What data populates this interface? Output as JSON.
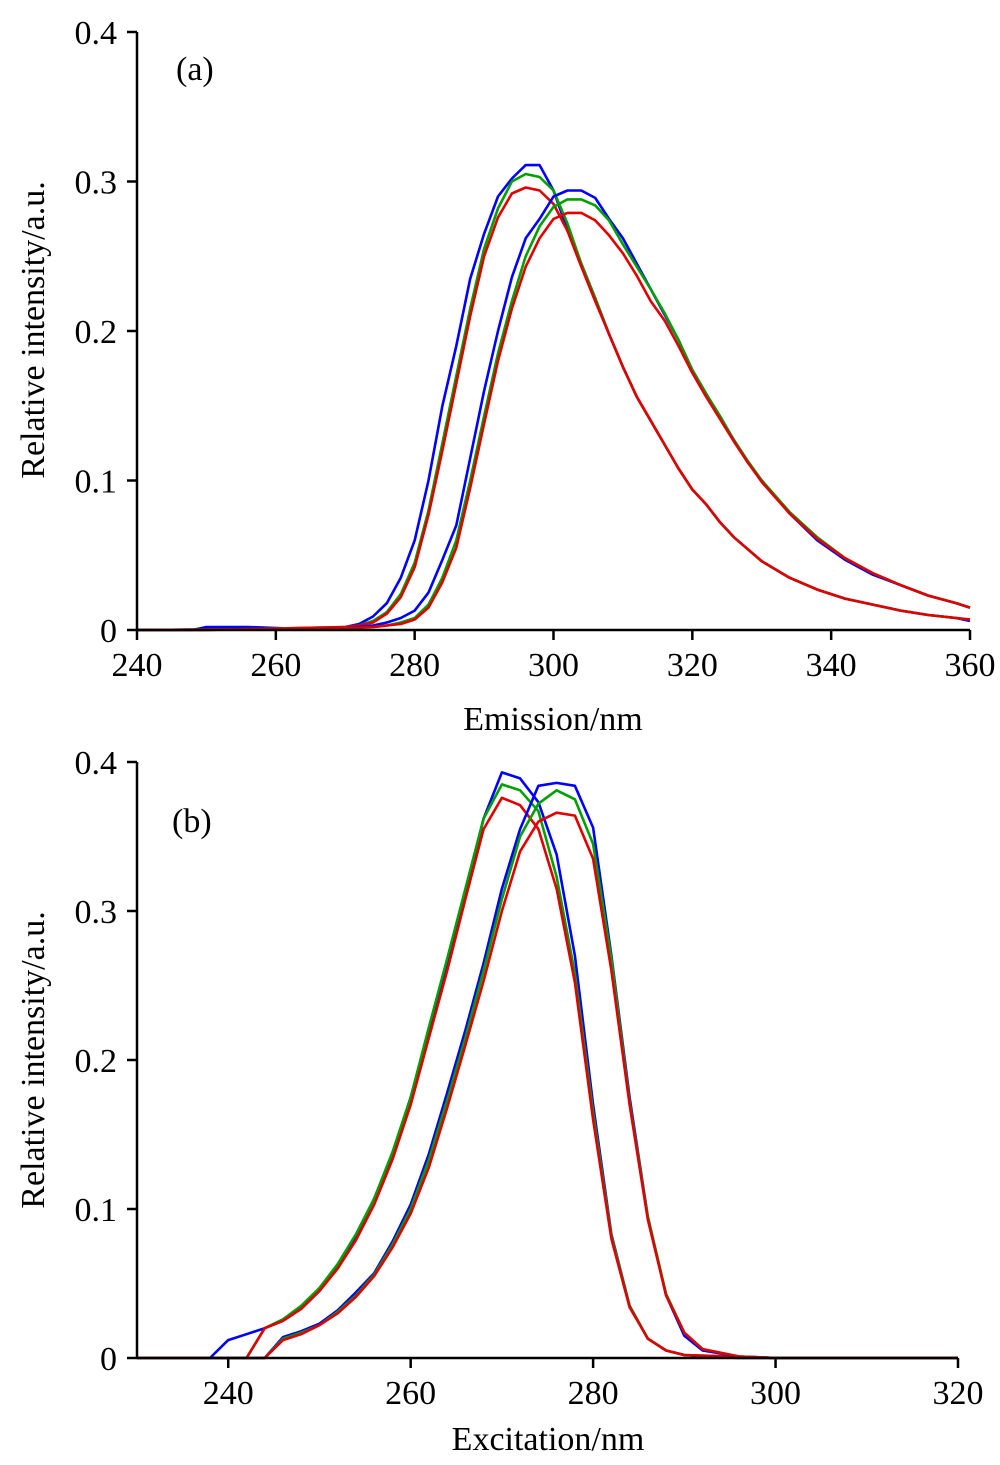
{
  "chart_data": [
    {
      "type": "line",
      "panel_label": "(a)",
      "xlabel": "Emission/nm",
      "ylabel": "Relative intensity/a.u.",
      "xlim": [
        240,
        360
      ],
      "ylim": [
        0,
        0.4
      ],
      "xticks": [
        "240",
        "260",
        "280",
        "300",
        "320",
        "340",
        "360"
      ],
      "yticks": [
        "0",
        "0.1",
        "0.2",
        "0.3",
        "0.4"
      ],
      "grid": false,
      "series": [
        {
          "color": "#0000ff",
          "x": [
            240,
            248,
            250,
            256,
            262,
            266,
            270,
            272,
            274,
            276,
            278,
            280,
            282,
            284,
            286,
            288,
            290,
            292,
            294,
            296,
            298,
            300,
            302,
            304,
            306,
            308,
            310,
            312,
            314,
            316,
            318,
            320,
            322,
            324,
            326,
            328,
            330,
            334,
            338,
            342,
            346,
            350,
            354,
            358,
            360
          ],
          "y": [
            0,
            0,
            0.002,
            0.002,
            0.001,
            0.001,
            0.002,
            0.004,
            0.009,
            0.018,
            0.035,
            0.06,
            0.1,
            0.15,
            0.19,
            0.235,
            0.265,
            0.29,
            0.302,
            0.311,
            0.311,
            0.294,
            0.268,
            0.245,
            0.222,
            0.198,
            0.176,
            0.156,
            0.14,
            0.124,
            0.108,
            0.094,
            0.084,
            0.072,
            0.062,
            0.054,
            0.046,
            0.035,
            0.027,
            0.021,
            0.017,
            0.013,
            0.01,
            0.008,
            0.006
          ]
        },
        {
          "color": "#00a000",
          "x": [
            240,
            250,
            260,
            270,
            272,
            274,
            276,
            278,
            280,
            282,
            284,
            286,
            288,
            290,
            292,
            294,
            296,
            298,
            300,
            302,
            304,
            306,
            308,
            310,
            312,
            314,
            316,
            318,
            320,
            322,
            324,
            326,
            328,
            330,
            334,
            338,
            342,
            346,
            350,
            354,
            358,
            360
          ],
          "y": [
            0,
            0,
            0.001,
            0.002,
            0.003,
            0.006,
            0.012,
            0.024,
            0.045,
            0.08,
            0.125,
            0.17,
            0.215,
            0.255,
            0.282,
            0.3,
            0.305,
            0.303,
            0.294,
            0.272,
            0.245,
            0.222,
            0.198,
            0.176,
            0.156,
            0.14,
            0.124,
            0.108,
            0.094,
            0.084,
            0.072,
            0.062,
            0.054,
            0.046,
            0.035,
            0.027,
            0.021,
            0.017,
            0.013,
            0.01,
            0.008,
            0.007
          ]
        },
        {
          "color": "#e00000",
          "x": [
            240,
            250,
            260,
            270,
            272,
            274,
            276,
            278,
            280,
            282,
            284,
            286,
            288,
            290,
            292,
            294,
            296,
            298,
            300,
            302,
            304,
            306,
            308,
            310,
            312,
            314,
            316,
            318,
            320,
            322,
            324,
            326,
            328,
            330,
            334,
            338,
            342,
            346,
            350,
            354,
            358,
            360
          ],
          "y": [
            0,
            0,
            0.001,
            0.002,
            0.003,
            0.005,
            0.011,
            0.022,
            0.042,
            0.077,
            0.12,
            0.165,
            0.21,
            0.25,
            0.276,
            0.292,
            0.296,
            0.294,
            0.285,
            0.267,
            0.243,
            0.22,
            0.198,
            0.176,
            0.156,
            0.14,
            0.124,
            0.108,
            0.094,
            0.084,
            0.072,
            0.062,
            0.054,
            0.046,
            0.035,
            0.027,
            0.021,
            0.017,
            0.013,
            0.01,
            0.008,
            0.007
          ]
        },
        {
          "color": "#0000ff",
          "x": [
            240,
            270,
            274,
            276,
            278,
            280,
            282,
            284,
            286,
            288,
            290,
            292,
            294,
            296,
            298,
            300,
            302,
            304,
            306,
            308,
            310,
            312,
            314,
            316,
            318,
            320,
            322,
            324,
            326,
            328,
            330,
            334,
            338,
            342,
            346,
            350,
            354,
            358,
            360
          ],
          "y": [
            0,
            0.001,
            0.003,
            0.005,
            0.008,
            0.013,
            0.025,
            0.047,
            0.07,
            0.115,
            0.16,
            0.2,
            0.236,
            0.262,
            0.275,
            0.29,
            0.294,
            0.294,
            0.289,
            0.275,
            0.262,
            0.245,
            0.228,
            0.211,
            0.194,
            0.174,
            0.158,
            0.142,
            0.127,
            0.112,
            0.1,
            0.078,
            0.06,
            0.047,
            0.037,
            0.03,
            0.023,
            0.018,
            0.015
          ]
        },
        {
          "color": "#00a000",
          "x": [
            240,
            270,
            274,
            276,
            278,
            280,
            282,
            284,
            286,
            288,
            290,
            292,
            294,
            296,
            298,
            300,
            302,
            304,
            306,
            308,
            310,
            312,
            314,
            316,
            318,
            320,
            322,
            324,
            326,
            328,
            330,
            334,
            338,
            342,
            346,
            350,
            354,
            358,
            360
          ],
          "y": [
            0,
            0.001,
            0.002,
            0.003,
            0.005,
            0.008,
            0.017,
            0.035,
            0.06,
            0.1,
            0.143,
            0.185,
            0.22,
            0.25,
            0.27,
            0.283,
            0.288,
            0.288,
            0.284,
            0.274,
            0.258,
            0.243,
            0.228,
            0.212,
            0.194,
            0.174,
            0.158,
            0.143,
            0.127,
            0.113,
            0.1,
            0.079,
            0.062,
            0.048,
            0.038,
            0.03,
            0.023,
            0.018,
            0.015
          ]
        },
        {
          "color": "#e00000",
          "x": [
            240,
            270,
            274,
            276,
            278,
            280,
            282,
            284,
            286,
            288,
            290,
            292,
            294,
            296,
            298,
            300,
            302,
            304,
            306,
            308,
            310,
            312,
            314,
            316,
            318,
            320,
            322,
            324,
            326,
            328,
            330,
            334,
            338,
            342,
            346,
            350,
            354,
            358,
            360
          ],
          "y": [
            0,
            0.001,
            0.002,
            0.003,
            0.004,
            0.007,
            0.015,
            0.032,
            0.055,
            0.095,
            0.138,
            0.18,
            0.215,
            0.243,
            0.262,
            0.275,
            0.279,
            0.279,
            0.274,
            0.264,
            0.252,
            0.237,
            0.22,
            0.207,
            0.19,
            0.172,
            0.156,
            0.141,
            0.126,
            0.112,
            0.099,
            0.078,
            0.061,
            0.048,
            0.038,
            0.03,
            0.023,
            0.018,
            0.015
          ]
        }
      ]
    },
    {
      "type": "line",
      "panel_label": "(b)",
      "xlabel": "Excitation/nm",
      "ylabel": "Relative intensity/a.u.",
      "xlim": [
        230,
        320
      ],
      "ylim": [
        0,
        0.4
      ],
      "xticks": [
        "240",
        "260",
        "280",
        "300",
        "320"
      ],
      "yticks": [
        "0",
        "0.1",
        "0.2",
        "0.3",
        "0.4"
      ],
      "grid": false,
      "series": [
        {
          "color": "#0000ff",
          "x": [
            230,
            238,
            240,
            242,
            244,
            246,
            248,
            250,
            252,
            254,
            256,
            258,
            260,
            262,
            264,
            266,
            268,
            270,
            272,
            274,
            276,
            278,
            280,
            282,
            284,
            286,
            288,
            290,
            292,
            296,
            300,
            320
          ],
          "y": [
            0,
            0,
            0.012,
            0.016,
            0.02,
            0.025,
            0.033,
            0.045,
            0.062,
            0.082,
            0.107,
            0.137,
            0.175,
            0.22,
            0.266,
            0.312,
            0.362,
            0.393,
            0.389,
            0.373,
            0.338,
            0.27,
            0.17,
            0.083,
            0.035,
            0.013,
            0.005,
            0.002,
            0.001,
            0,
            0,
            0
          ]
        },
        {
          "color": "#00a000",
          "x": [
            230,
            242,
            244,
            246,
            248,
            250,
            252,
            254,
            256,
            258,
            260,
            262,
            264,
            266,
            268,
            270,
            272,
            274,
            276,
            278,
            280,
            282,
            284,
            286,
            288,
            290,
            300,
            320
          ],
          "y": [
            0,
            0,
            0.02,
            0.026,
            0.035,
            0.047,
            0.063,
            0.083,
            0.107,
            0.138,
            0.175,
            0.222,
            0.268,
            0.315,
            0.362,
            0.385,
            0.381,
            0.367,
            0.323,
            0.258,
            0.165,
            0.082,
            0.035,
            0.013,
            0.005,
            0.002,
            0,
            0
          ]
        },
        {
          "color": "#e00000",
          "x": [
            230,
            242,
            244,
            246,
            248,
            250,
            252,
            254,
            256,
            258,
            260,
            262,
            264,
            266,
            268,
            270,
            272,
            274,
            276,
            278,
            280,
            282,
            284,
            286,
            288,
            290,
            300,
            320
          ],
          "y": [
            0,
            0,
            0.02,
            0.025,
            0.033,
            0.045,
            0.06,
            0.079,
            0.103,
            0.133,
            0.17,
            0.215,
            0.26,
            0.308,
            0.355,
            0.376,
            0.371,
            0.355,
            0.315,
            0.252,
            0.16,
            0.08,
            0.034,
            0.013,
            0.005,
            0.002,
            0,
            0
          ]
        },
        {
          "color": "#0000ff",
          "x": [
            230,
            244,
            246,
            248,
            250,
            252,
            254,
            256,
            258,
            260,
            262,
            264,
            266,
            268,
            270,
            272,
            274,
            276,
            278,
            280,
            282,
            284,
            286,
            288,
            290,
            292,
            296,
            300,
            320
          ],
          "y": [
            0,
            0,
            0.014,
            0.018,
            0.023,
            0.032,
            0.044,
            0.057,
            0.078,
            0.103,
            0.137,
            0.178,
            0.22,
            0.265,
            0.315,
            0.355,
            0.384,
            0.386,
            0.384,
            0.356,
            0.27,
            0.175,
            0.095,
            0.042,
            0.015,
            0.005,
            0.001,
            0,
            0
          ]
        },
        {
          "color": "#00a000",
          "x": [
            230,
            244,
            246,
            248,
            250,
            252,
            254,
            256,
            258,
            260,
            262,
            264,
            266,
            268,
            270,
            272,
            274,
            276,
            278,
            280,
            282,
            284,
            286,
            288,
            290,
            292,
            296,
            300,
            320
          ],
          "y": [
            0,
            0,
            0.013,
            0.017,
            0.022,
            0.031,
            0.042,
            0.056,
            0.076,
            0.1,
            0.133,
            0.173,
            0.215,
            0.26,
            0.308,
            0.35,
            0.372,
            0.381,
            0.375,
            0.345,
            0.268,
            0.172,
            0.095,
            0.043,
            0.017,
            0.006,
            0.001,
            0,
            0
          ]
        },
        {
          "color": "#e00000",
          "x": [
            230,
            244,
            246,
            248,
            250,
            252,
            254,
            256,
            258,
            260,
            262,
            264,
            266,
            268,
            270,
            272,
            274,
            276,
            278,
            280,
            282,
            284,
            286,
            288,
            290,
            292,
            296,
            300,
            320
          ],
          "y": [
            0,
            0,
            0.012,
            0.016,
            0.022,
            0.03,
            0.041,
            0.055,
            0.074,
            0.097,
            0.128,
            0.168,
            0.21,
            0.253,
            0.3,
            0.34,
            0.36,
            0.366,
            0.364,
            0.335,
            0.26,
            0.17,
            0.093,
            0.042,
            0.017,
            0.006,
            0.001,
            0,
            0
          ]
        }
      ]
    }
  ]
}
